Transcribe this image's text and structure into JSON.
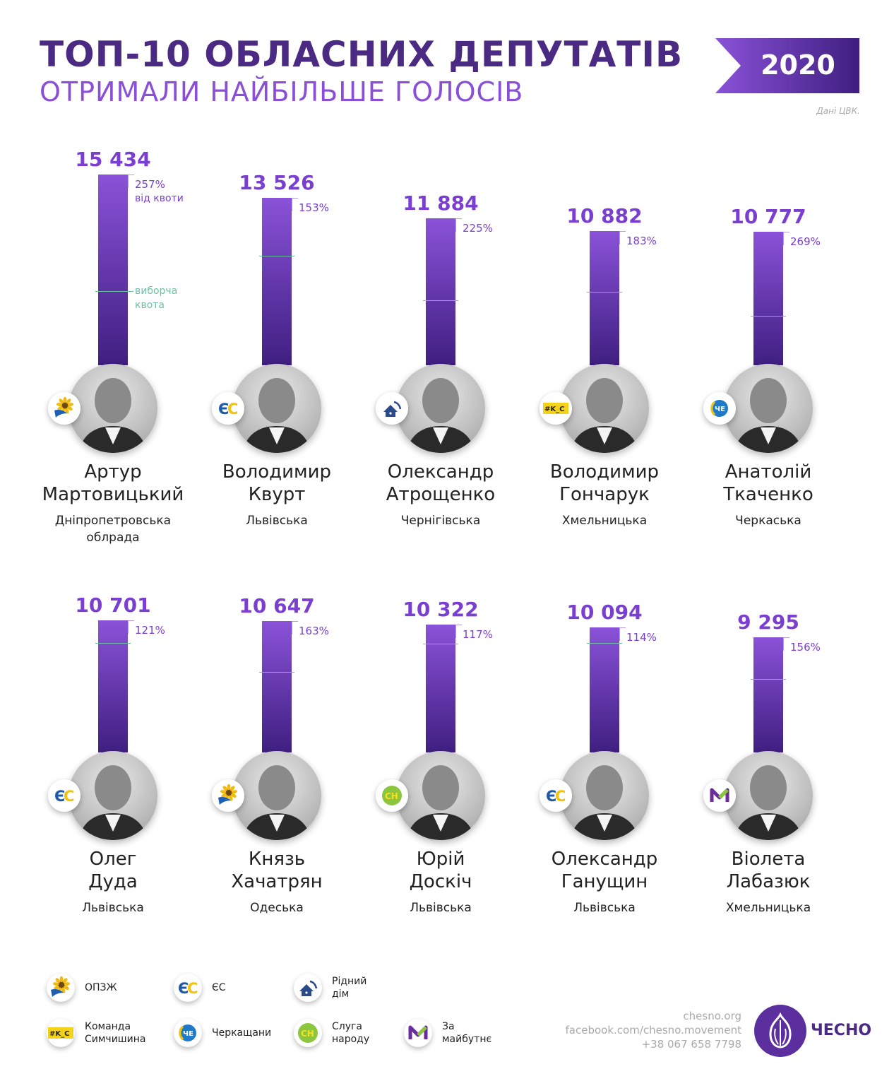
{
  "header": {
    "title": "ТОП-10 ОБЛАСНИХ ДЕПУТАТІВ",
    "subtitle": "ОТРИМАЛИ НАЙБІЛЬШЕ ГОЛОСІВ",
    "year": "2020",
    "source": "Дані ЦВК."
  },
  "chart_data": {
    "type": "bar",
    "title": "ТОП-10 ОБЛАСНИХ ДЕПУТАТІВ",
    "subtitle": "ОТРИМАЛИ НАЙБІЛЬШЕ ГОЛОСІВ",
    "pct_note": "від квоти",
    "quota_label": "виборча\nквота",
    "categories": [
      "Артур Мартовицький",
      "Володимир Квурт",
      "Олександр Атрощенко",
      "Володимир Гончарук",
      "Анатолій Ткаченко",
      "Олег Дуда",
      "Князь Хачатрян",
      "Юрій Доскіч",
      "Олександр Ганущин",
      "Віолета Лабазюк"
    ],
    "values": [
      15434,
      13526,
      11884,
      10882,
      10777,
      10701,
      10647,
      10322,
      10094,
      9295
    ],
    "items": [
      {
        "votes": 15434,
        "votes_label": "15 434",
        "pct": 257,
        "pct_label": "257%",
        "first": "Артур",
        "last": "Мартовицький",
        "region": "Дніпропетровська\nоблрада",
        "party": "ОПЗЖ"
      },
      {
        "votes": 13526,
        "votes_label": "13 526",
        "pct": 153,
        "pct_label": "153%",
        "first": "Володимир",
        "last": "Квурт",
        "region": "Львівська",
        "party": "ЄС"
      },
      {
        "votes": 11884,
        "votes_label": "11 884",
        "pct": 225,
        "pct_label": "225%",
        "first": "Олександр",
        "last": "Атрощенко",
        "region": "Чернігівська",
        "party": "Рідний дім"
      },
      {
        "votes": 10882,
        "votes_label": "10 882",
        "pct": 183,
        "pct_label": "183%",
        "first": "Володимир",
        "last": "Гончарук",
        "region": "Хмельницька",
        "party": "Команда Симчишина"
      },
      {
        "votes": 10777,
        "votes_label": "10 777",
        "pct": 269,
        "pct_label": "269%",
        "first": "Анатолій",
        "last": "Ткаченко",
        "region": "Черкаська",
        "party": "Черкащани"
      },
      {
        "votes": 10701,
        "votes_label": "10 701",
        "pct": 121,
        "pct_label": "121%",
        "first": "Олег",
        "last": "Дуда",
        "region": "Львівська",
        "party": "ЄС"
      },
      {
        "votes": 10647,
        "votes_label": "10 647",
        "pct": 163,
        "pct_label": "163%",
        "first": "Князь",
        "last": "Хачатрян",
        "region": "Одеська",
        "party": "ОПЗЖ"
      },
      {
        "votes": 10322,
        "votes_label": "10 322",
        "pct": 117,
        "pct_label": "117%",
        "first": "Юрій",
        "last": "Доскіч",
        "region": "Львівська",
        "party": "Слуга народу"
      },
      {
        "votes": 10094,
        "votes_label": "10 094",
        "pct": 114,
        "pct_label": "114%",
        "first": "Олександр",
        "last": "Ганущин",
        "region": "Львівська",
        "party": "ЄС"
      },
      {
        "votes": 9295,
        "votes_label": "9 295",
        "pct": 156,
        "pct_label": "156%",
        "first": "Віолета",
        "last": "Лабазюк",
        "region": "Хмельницька",
        "party": "За майбутнє"
      }
    ]
  },
  "legend": [
    {
      "label": "ОПЗЖ",
      "icon": "sunflower-icon",
      "party": "ОПЗЖ"
    },
    {
      "label": "ЄС",
      "icon": "es-logo-icon",
      "party": "ЄС"
    },
    {
      "label": "Рідний\nдім",
      "icon": "house-icon",
      "party": "Рідний дім"
    },
    {
      "label": "Команда\nСимчишина",
      "icon": "ks-logo-icon",
      "party": "Команда Симчишина"
    },
    {
      "label": "Черкащани",
      "icon": "che-logo-icon",
      "party": "Черкащани"
    },
    {
      "label": "Слуга\nнароду",
      "icon": "sn-logo-icon",
      "party": "Слуга народу"
    },
    {
      "label": "За\nмайбутнє",
      "icon": "m-logo-icon",
      "party": "За майбутнє"
    }
  ],
  "footer": {
    "site": "chesno.org",
    "facebook": "facebook.com/chesno.movement",
    "phone": "+38 067 658 7798",
    "logo_text": "ЧЕСНО"
  },
  "colors": {
    "accent": "#7a3fd0",
    "dark": "#4a2a82",
    "quota": "#6dc2a4"
  }
}
